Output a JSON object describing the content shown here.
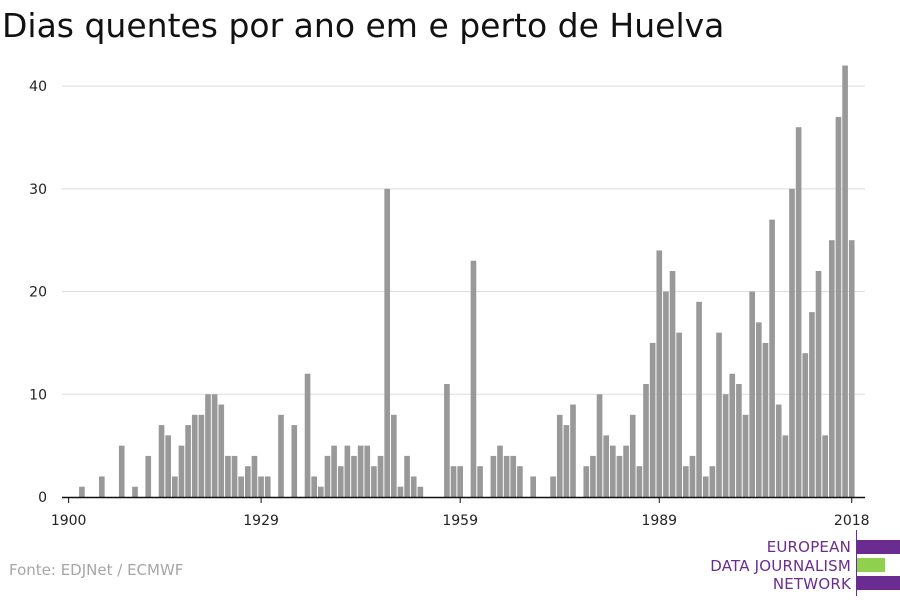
{
  "title": "Dias quentes por ano em e perto de Huelva",
  "source": "Fonte: EDJNet / ECMWF",
  "logo": {
    "lines": [
      "EUROPEAN",
      "DATA JOURNALISM",
      "NETWORK"
    ],
    "colors": {
      "purple": "#6a2c91",
      "green": "#8fd14f"
    }
  },
  "chart_data": {
    "type": "bar",
    "title": "Dias quentes por ano em e perto de Huelva",
    "xlabel": "",
    "ylabel": "",
    "x_start": 1900,
    "x_end": 2019,
    "xlim": [
      1899,
      2020
    ],
    "ylim": [
      0,
      44
    ],
    "grid": true,
    "bar_color": "#999999",
    "x_ticks": [
      1900,
      1929,
      1959,
      1989,
      2018
    ],
    "y_ticks": [
      0,
      10,
      20,
      30,
      40
    ],
    "values": [
      0,
      0,
      1,
      0,
      0,
      2,
      0,
      0,
      5,
      0,
      1,
      0,
      4,
      0,
      7,
      6,
      2,
      5,
      7,
      8,
      8,
      10,
      10,
      9,
      4,
      4,
      2,
      3,
      4,
      2,
      2,
      0,
      8,
      0,
      7,
      0,
      12,
      2,
      1,
      4,
      5,
      3,
      5,
      4,
      5,
      5,
      3,
      4,
      30,
      8,
      1,
      4,
      2,
      1,
      0,
      0,
      0,
      11,
      3,
      3,
      0,
      23,
      3,
      0,
      4,
      5,
      4,
      4,
      3,
      0,
      2,
      0,
      0,
      2,
      8,
      7,
      9,
      0,
      3,
      4,
      10,
      6,
      5,
      4,
      5,
      8,
      3,
      11,
      15,
      24,
      20,
      22,
      16,
      3,
      4,
      19,
      2,
      3,
      16,
      10,
      12,
      11,
      8,
      20,
      17,
      15,
      27,
      9,
      6,
      30,
      36,
      14,
      18,
      22,
      6,
      25,
      37,
      42,
      25,
      0
    ]
  }
}
